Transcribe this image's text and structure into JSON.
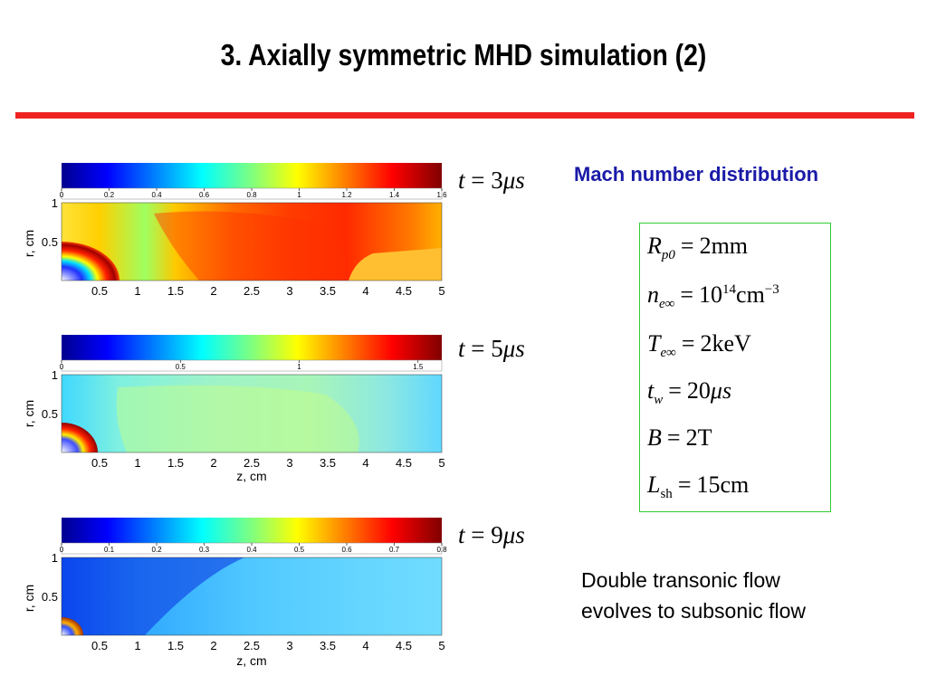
{
  "slide": {
    "title": "3. Axially symmetric MHD simulation (2)",
    "accent_color": "#ee2222",
    "heading": "Mach number distribution",
    "note_line1": "Double transonic flow",
    "note_line2": "evolves to subsonic flow"
  },
  "panels": [
    {
      "time": {
        "t": "t",
        "eq": "=",
        "value": "3",
        "unit": "μs"
      },
      "colorbar_ticks": [
        "0",
        "0.2",
        "0.4",
        "0.6",
        "0.8",
        "1",
        "1.2",
        "1.4",
        "1.6"
      ],
      "colorbar_range": [
        0,
        1.6
      ],
      "r_ticks": [
        "1",
        "0.5"
      ],
      "z_ticks": [
        "0.5",
        "1",
        "1.5",
        "2",
        "2.5",
        "3",
        "3.5",
        "4",
        "4.5",
        "5"
      ],
      "ylabel": "r, cm",
      "xlabel": ""
    },
    {
      "time": {
        "t": "t",
        "eq": "=",
        "value": "5",
        "unit": "μs"
      },
      "colorbar_ticks": [
        "0",
        "0.5",
        "1",
        "1.5"
      ],
      "colorbar_range": [
        0,
        1.6
      ],
      "r_ticks": [
        "1",
        "0.5"
      ],
      "z_ticks": [
        "0.5",
        "1",
        "1.5",
        "2",
        "2.5",
        "3",
        "3.5",
        "4",
        "4.5",
        "5"
      ],
      "ylabel": "r, cm",
      "xlabel": "z, cm"
    },
    {
      "time": {
        "t": "t",
        "eq": "=",
        "value": "9",
        "unit": "μs"
      },
      "colorbar_ticks": [
        "0",
        "0.1",
        "0.2",
        "0.3",
        "0.4",
        "0.5",
        "0.6",
        "0.7",
        "0.8"
      ],
      "colorbar_range": [
        0,
        0.8
      ],
      "r_ticks": [
        "1",
        "0.5"
      ],
      "z_ticks": [
        "0.5",
        "1",
        "1.5",
        "2",
        "2.5",
        "3",
        "3.5",
        "4",
        "4.5",
        "5"
      ],
      "ylabel": "r, cm",
      "xlabel": "z, cm"
    }
  ],
  "parameters": [
    {
      "sym": "R",
      "sub": "p0",
      "sub_upright": false,
      "op": "=",
      "value": "2mm",
      "sup": ""
    },
    {
      "sym": "n",
      "sub": "e∞",
      "sub_upright": false,
      "op": "=",
      "value": "10",
      "sup": "14",
      "tail": "cm",
      "tail_sup": "−3"
    },
    {
      "sym": "T",
      "sub": "e∞",
      "sub_upright": false,
      "op": "=",
      "value": "2keV",
      "sup": ""
    },
    {
      "sym": "t",
      "sub": "w",
      "sub_upright": false,
      "op": "=",
      "value": "20",
      "unit_italic": "μs",
      "sup": ""
    },
    {
      "sym": "B",
      "sub": "",
      "sub_upright": false,
      "op": "=",
      "value": "2T",
      "sup": ""
    },
    {
      "sym": "L",
      "sub": "sh",
      "sub_upright": true,
      "op": "=",
      "value": "15cm",
      "sup": ""
    }
  ]
}
